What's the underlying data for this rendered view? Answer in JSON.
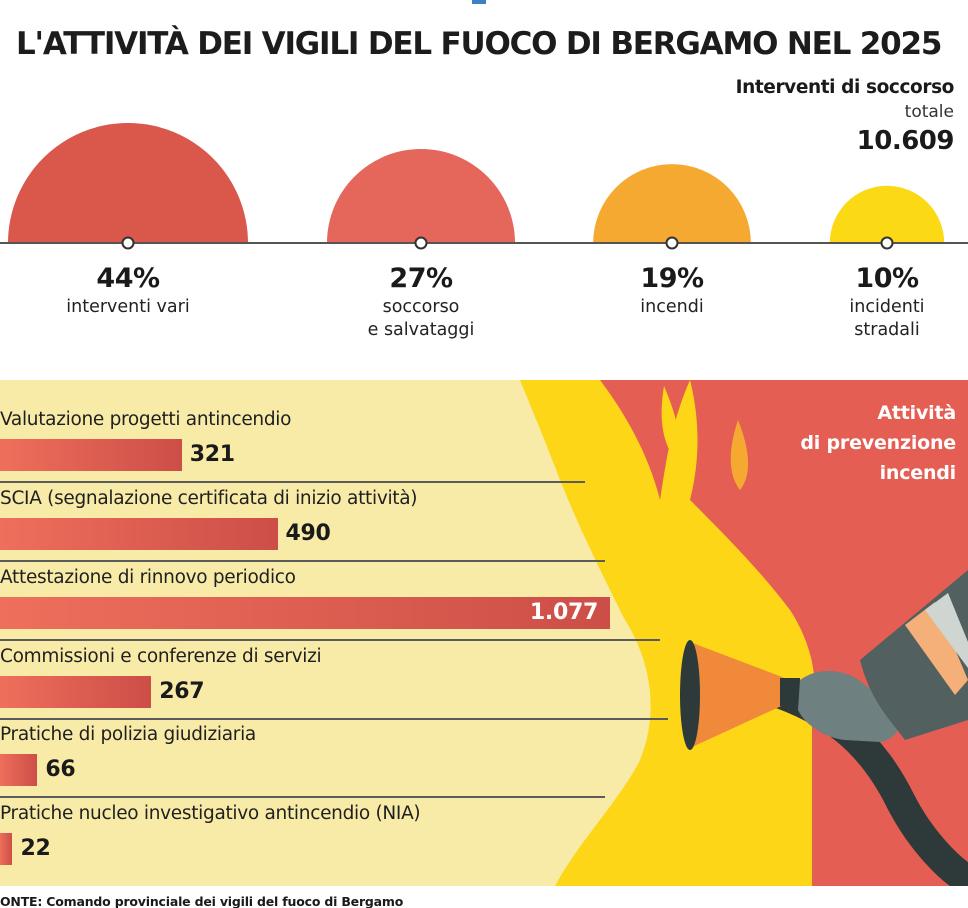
{
  "title": "L'ATTIVITÀ DEI VIGILI DEL FUOCO DI BERGAMO NEL 2025",
  "interventions": {
    "heading": "Interventi di soccorso",
    "total_label": "totale",
    "total_value": "10.609"
  },
  "prevention": {
    "title_line1": "Attività",
    "title_line2": "di prevenzione",
    "title_line3": "incendi"
  },
  "source": "ONTE: Comando provinciale dei vigili del fuoco di Bergamo",
  "colors": {
    "semi_1": "#d9574b",
    "semi_2": "#e5665a",
    "semi_3": "#f6a930",
    "semi_4": "#fbd914",
    "bar": "#d95650",
    "panel_background": "#f8eba8",
    "fire_red": "#e55e54",
    "flame_yellow": "#fdd617"
  },
  "icons": [
    "fire-hose-nozzle-icon",
    "gloved-hand-icon",
    "flame-icon"
  ],
  "chart_data": [
    {
      "type": "pie",
      "title": "Interventi di soccorso",
      "total": 10609,
      "categories": [
        "interventi vari",
        "soccorso\ne salvataggi",
        "incendi",
        "incidenti\nstradali"
      ],
      "values": [
        44,
        27,
        19,
        10
      ],
      "value_labels": [
        "44%",
        "27%",
        "19%",
        "10%"
      ],
      "unit": "%"
    },
    {
      "type": "bar",
      "title": "Attività di prevenzione incendi",
      "categories": [
        "Valutazione progetti antincendio",
        "SCIA  (segnalazione certificata di inizio attività)",
        "Attestazione di rinnovo periodico",
        "Commissioni e conferenze di servizi",
        "Pratiche di polizia giudiziaria",
        "Pratiche nucleo investigativo antincendio (NIA)"
      ],
      "values": [
        321,
        490,
        1077,
        267,
        66,
        22
      ],
      "value_labels": [
        "321",
        "490",
        "1.077",
        "267",
        "66",
        "22"
      ]
    }
  ]
}
